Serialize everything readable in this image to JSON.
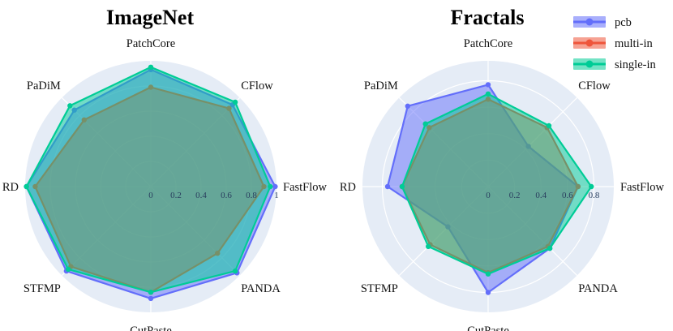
{
  "colors": {
    "bg": "#e5ecf6",
    "grid": "#ffffff",
    "pcb": "#636efa",
    "multi_in": "#ef553b",
    "single_in": "#00cc96"
  },
  "legend": [
    {
      "key": "pcb",
      "label": "pcb"
    },
    {
      "key": "multi_in",
      "label": "multi-in"
    },
    {
      "key": "single_in",
      "label": "single-in"
    }
  ],
  "chart_data": [
    {
      "type": "radar",
      "title": "ImageNet",
      "axes": [
        "FastFlow",
        "CFlow",
        "PatchCore",
        "PaDiM",
        "RD",
        "STFMP",
        "CutPaste",
        "PANDA"
      ],
      "radial_range": [
        0,
        1
      ],
      "radial_ticks": [
        "0",
        "0.2",
        "0.4",
        "0.6",
        "0.8",
        "1"
      ],
      "series": [
        {
          "name": "pcb",
          "key": "pcb",
          "values": [
            0.99,
            0.92,
            0.93,
            0.86,
            0.99,
            0.95,
            0.89,
            0.97
          ]
        },
        {
          "name": "multi-in",
          "key": "multi_in",
          "values": [
            0.9,
            0.88,
            0.79,
            0.75,
            0.92,
            0.9,
            0.84,
            0.75
          ]
        },
        {
          "name": "single-in",
          "key": "single_in",
          "values": [
            0.95,
            0.95,
            0.95,
            0.91,
            0.99,
            0.93,
            0.84,
            0.95
          ]
        }
      ]
    },
    {
      "type": "radar",
      "title": "Fractals",
      "axes": [
        "FastFlow",
        "CFlow",
        "PatchCore",
        "PaDiM",
        "RD",
        "STFMP",
        "CutPaste",
        "PANDA"
      ],
      "radial_range": [
        0,
        0.95
      ],
      "radial_ticks": [
        "0",
        "0.2",
        "0.4",
        "0.6",
        "0.8"
      ],
      "series": [
        {
          "name": "pcb",
          "key": "pcb",
          "values": [
            0.68,
            0.43,
            0.77,
            0.86,
            0.76,
            0.43,
            0.8,
            0.66
          ]
        },
        {
          "name": "multi-in",
          "key": "multi_in",
          "values": [
            0.68,
            0.63,
            0.66,
            0.63,
            0.65,
            0.62,
            0.65,
            0.64
          ]
        },
        {
          "name": "single-in",
          "key": "single_in",
          "values": [
            0.78,
            0.65,
            0.7,
            0.67,
            0.65,
            0.64,
            0.66,
            0.66
          ]
        }
      ]
    }
  ]
}
